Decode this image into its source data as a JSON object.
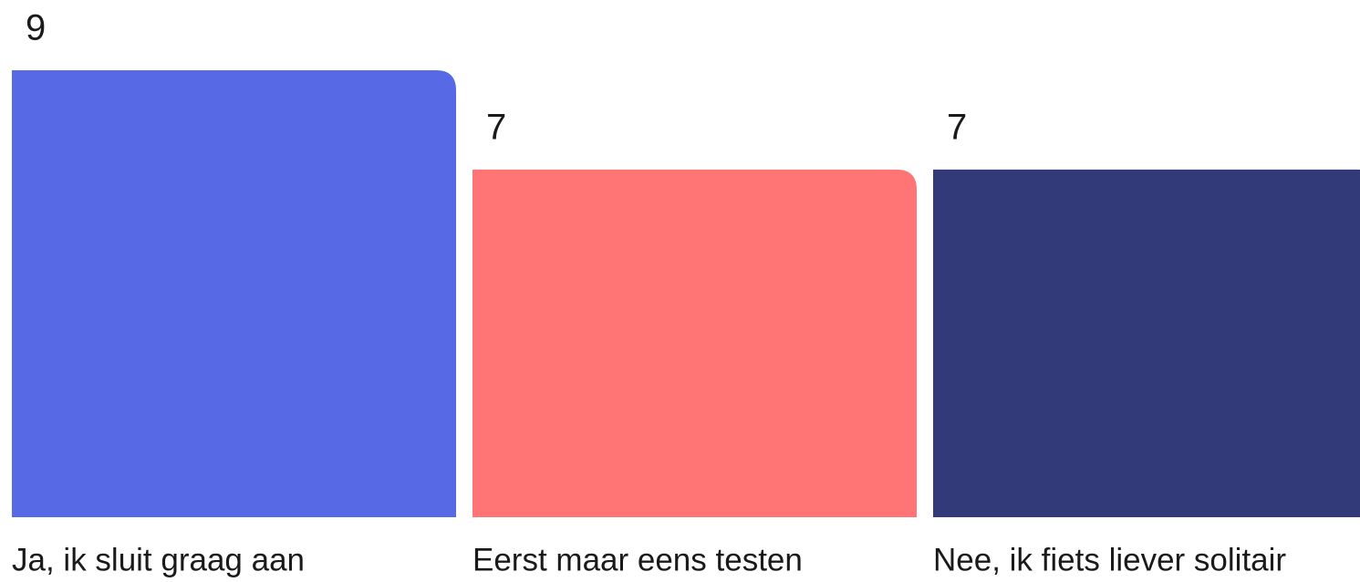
{
  "chart_data": {
    "type": "bar",
    "categories": [
      "Ja, ik sluit graag aan",
      "Eerst maar eens testen",
      "Nee, ik fiets liever solitair"
    ],
    "values": [
      9,
      7,
      7
    ],
    "colors": [
      "#5869e6",
      "#ff7474",
      "#323a7a"
    ]
  }
}
